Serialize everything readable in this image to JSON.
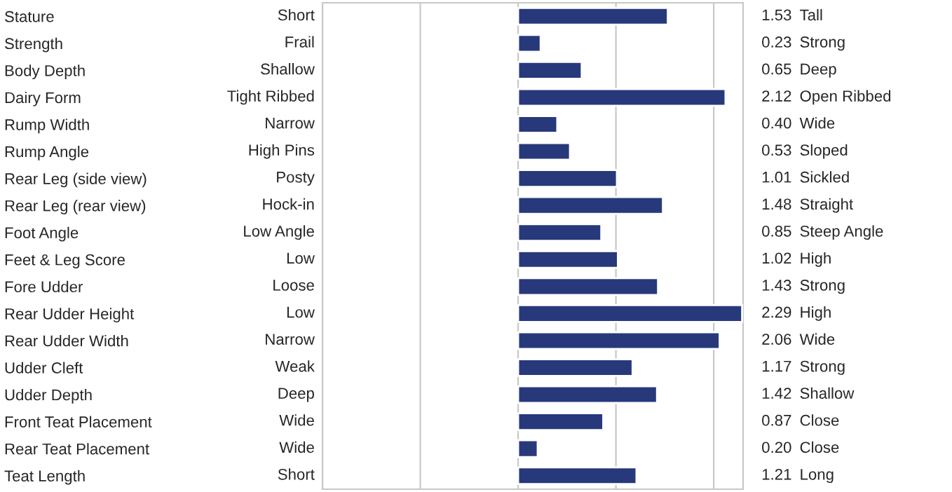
{
  "chart_data": {
    "type": "bar",
    "orientation": "horizontal",
    "categories": [
      "Stature",
      "Strength",
      "Body Depth",
      "Dairy Form",
      "Rump Width",
      "Rump Angle",
      "Rear Leg (side view)",
      "Rear Leg (rear view)",
      "Foot Angle",
      "Feet & Leg Score",
      "Fore Udder",
      "Rear Udder Height",
      "Rear Udder Width",
      "Udder Cleft",
      "Udder Depth",
      "Front Teat Placement",
      "Rear Teat Placement",
      "Teat Length"
    ],
    "values": [
      1.53,
      0.23,
      0.65,
      2.12,
      0.4,
      0.53,
      1.01,
      1.48,
      0.85,
      1.02,
      1.43,
      2.29,
      2.06,
      1.17,
      1.42,
      0.87,
      0.2,
      1.21
    ],
    "value_labels": [
      "1.53",
      "0.23",
      "0.65",
      "2.12",
      "0.40",
      "0.53",
      "1.01",
      "1.48",
      "0.85",
      "1.02",
      "1.43",
      "2.29",
      "2.06",
      "1.17",
      "1.42",
      "0.87",
      "0.20",
      "1.21"
    ],
    "color": "#27397a",
    "xlim": [
      -2,
      2.3
    ],
    "xticks": [
      {
        "value": -2,
        "label": null
      },
      {
        "value": -1,
        "label": null
      },
      {
        "value": 0,
        "label": null
      },
      {
        "value": 1,
        "label": null
      },
      {
        "value": 2,
        "label": null
      }
    ],
    "grid": "x",
    "tick_labels": "y",
    "annotations": [
      "Short",
      "Frail",
      "Shallow",
      "Tight Ribbed",
      "Narrow",
      "High Pins",
      "Posty",
      "Hock-in",
      "Low Angle",
      "Low",
      "Loose",
      "Low",
      "Narrow",
      "Weak",
      "Deep",
      "Wide",
      "Wide",
      "Short",
      "Tall",
      "Strong",
      "Deep",
      "Open Ribbed",
      "Wide",
      "Sloped",
      "Sickled",
      "Straight",
      "Steep Angle",
      "High",
      "Strong",
      "High",
      "Wide",
      "Strong",
      "Shallow",
      "Close",
      "Close",
      "Long"
    ]
  }
}
